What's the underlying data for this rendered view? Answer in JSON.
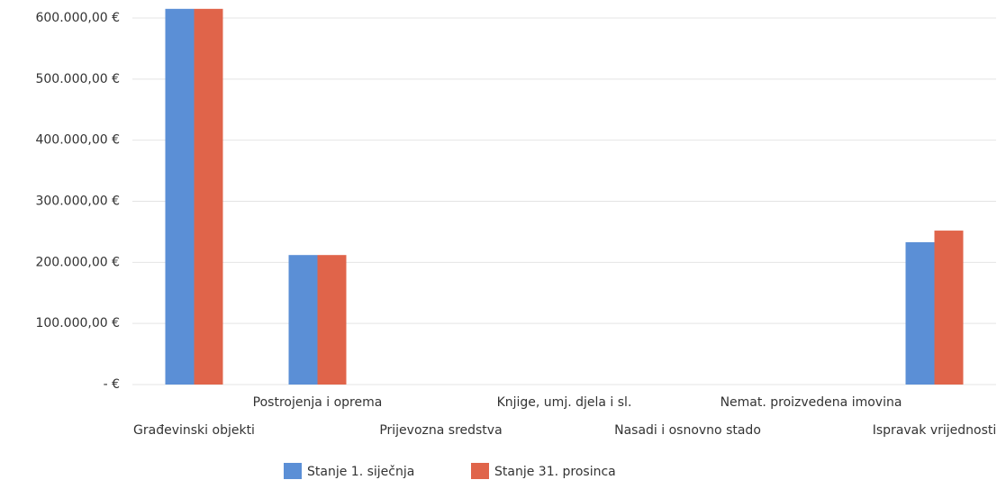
{
  "chart_data": {
    "type": "bar",
    "categories": [
      "Građevinski objekti",
      "Postrojenja i oprema",
      "Prijevozna sredstva",
      "Knjige, umj. djela i sl.",
      "Nasadi i osnovno stado",
      "Nemat. proizvedena imovina",
      "Ispravak vrijednosti"
    ],
    "series": [
      {
        "name": "Stanje 1. siječnja",
        "color": "#5b8fd6",
        "values": [
          615000,
          212000,
          0,
          0,
          0,
          0,
          233000
        ]
      },
      {
        "name": "Stanje 31. prosinca",
        "color": "#e0644a",
        "values": [
          615000,
          212000,
          0,
          0,
          0,
          0,
          252000
        ]
      }
    ],
    "ylim": [
      0,
      600000
    ],
    "yticks": [
      {
        "value": 0,
        "label": "- €"
      },
      {
        "value": 100000,
        "label": "100.000,00 €"
      },
      {
        "value": 200000,
        "label": "200.000,00 €"
      },
      {
        "value": 300000,
        "label": "300.000,00 €"
      },
      {
        "value": 400000,
        "label": "400.000,00 €"
      },
      {
        "value": 500000,
        "label": "500.000,00 €"
      },
      {
        "value": 600000,
        "label": "600.000,00 €"
      }
    ],
    "grid": true,
    "legend": "bottom"
  }
}
